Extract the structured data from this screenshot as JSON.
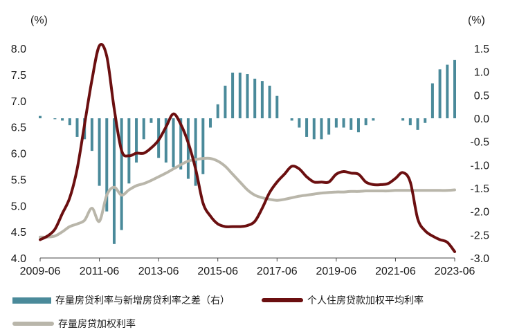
{
  "chart_data": {
    "type": "bar+line",
    "left_unit": "(%)",
    "right_unit": "(%)",
    "x_ticks": [
      "2009-06",
      "2011-06",
      "2013-06",
      "2015-06",
      "2017-06",
      "2019-06",
      "2021-06",
      "2023-06"
    ],
    "x_range": [
      "2009-06",
      "2023-06"
    ],
    "y_left": {
      "min": 4.0,
      "max": 8.0,
      "ticks": [
        "4.0",
        "4.5",
        "5.0",
        "5.5",
        "6.0",
        "6.5",
        "7.0",
        "7.5",
        "8.0"
      ]
    },
    "y_right": {
      "min": -3.0,
      "max": 1.5,
      "ticks": [
        "-3.0",
        "-2.5",
        "-2.0",
        "-1.5",
        "-1.0",
        "-0.5",
        "0.0",
        "0.5",
        "1.0",
        "1.5"
      ]
    },
    "colors": {
      "bar": "#4a8a9a",
      "individual": "#6b0f10",
      "stock": "#b9b6aa"
    },
    "series": [
      {
        "name": "存量房贷利率与新增房贷利率之差（右）",
        "type": "bar",
        "axis": "right",
        "x": [
          "2009-06",
          "2009-09",
          "2009-12",
          "2010-03",
          "2010-06",
          "2010-09",
          "2010-12",
          "2011-03",
          "2011-06",
          "2011-09",
          "2011-12",
          "2012-03",
          "2012-06",
          "2012-09",
          "2012-12",
          "2013-03",
          "2013-06",
          "2013-09",
          "2013-12",
          "2014-03",
          "2014-06",
          "2014-09",
          "2014-12",
          "2015-03",
          "2015-06",
          "2015-09",
          "2015-12",
          "2016-03",
          "2016-06",
          "2016-09",
          "2016-12",
          "2017-03",
          "2017-06",
          "2017-09",
          "2017-12",
          "2018-03",
          "2018-06",
          "2018-09",
          "2018-12",
          "2019-03",
          "2019-06",
          "2019-09",
          "2019-12",
          "2020-03",
          "2020-06",
          "2020-09",
          "2020-12",
          "2021-03",
          "2021-06",
          "2021-09",
          "2021-12",
          "2022-03",
          "2022-06",
          "2022-09",
          "2022-12",
          "2023-03",
          "2023-06"
        ],
        "values": [
          0.05,
          0.0,
          -0.02,
          -0.05,
          -0.15,
          -0.4,
          -0.45,
          -0.7,
          -1.45,
          -2.0,
          -2.7,
          -2.4,
          -1.4,
          -0.95,
          -0.45,
          -0.1,
          -0.85,
          -0.95,
          -1.05,
          -1.1,
          -1.3,
          -1.45,
          -1.2,
          -0.2,
          0.3,
          0.7,
          0.98,
          0.98,
          0.95,
          0.85,
          0.8,
          0.7,
          0.48,
          0.0,
          -0.05,
          -0.2,
          -0.4,
          -0.45,
          -0.45,
          -0.35,
          -0.2,
          -0.2,
          -0.25,
          -0.3,
          -0.15,
          -0.05,
          0.0,
          0.0,
          0.0,
          -0.05,
          -0.15,
          -0.25,
          -0.1,
          0.75,
          1.05,
          1.15,
          1.25
        ]
      },
      {
        "name": "个人住房贷款加权平均利率",
        "type": "line",
        "axis": "left",
        "x": [
          "2009-06",
          "2009-09",
          "2009-12",
          "2010-03",
          "2010-06",
          "2010-09",
          "2010-12",
          "2011-03",
          "2011-06",
          "2011-09",
          "2011-12",
          "2012-03",
          "2012-06",
          "2012-09",
          "2012-12",
          "2013-03",
          "2013-06",
          "2013-09",
          "2013-12",
          "2014-03",
          "2014-06",
          "2014-09",
          "2014-12",
          "2015-03",
          "2015-06",
          "2015-09",
          "2015-12",
          "2016-03",
          "2016-06",
          "2016-09",
          "2016-12",
          "2017-03",
          "2017-06",
          "2017-09",
          "2017-12",
          "2018-03",
          "2018-06",
          "2018-09",
          "2018-12",
          "2019-03",
          "2019-06",
          "2019-09",
          "2019-12",
          "2020-03",
          "2020-06",
          "2020-09",
          "2020-12",
          "2021-03",
          "2021-06",
          "2021-09",
          "2021-12",
          "2022-03",
          "2022-06",
          "2022-09",
          "2022-12",
          "2023-03",
          "2023-06"
        ],
        "values": [
          4.35,
          4.42,
          4.55,
          4.85,
          5.15,
          5.7,
          6.55,
          7.4,
          8.05,
          7.85,
          6.85,
          6.05,
          5.95,
          6.0,
          6.0,
          6.1,
          6.25,
          6.5,
          6.75,
          6.55,
          6.2,
          5.7,
          5.05,
          4.8,
          4.65,
          4.6,
          4.6,
          4.6,
          4.62,
          4.7,
          4.95,
          5.25,
          5.45,
          5.6,
          5.75,
          5.7,
          5.55,
          5.45,
          5.45,
          5.45,
          5.6,
          5.65,
          5.62,
          5.6,
          5.45,
          5.4,
          5.4,
          5.42,
          5.52,
          5.63,
          5.45,
          4.75,
          4.52,
          4.42,
          4.35,
          4.3,
          4.12
        ]
      },
      {
        "name": "存量房贷加权利率",
        "type": "line",
        "axis": "left",
        "x": [
          "2009-06",
          "2009-09",
          "2009-12",
          "2010-03",
          "2010-06",
          "2010-09",
          "2010-12",
          "2011-03",
          "2011-06",
          "2011-09",
          "2011-12",
          "2012-03",
          "2012-06",
          "2012-09",
          "2012-12",
          "2013-03",
          "2013-06",
          "2013-09",
          "2013-12",
          "2014-03",
          "2014-06",
          "2014-09",
          "2014-12",
          "2015-03",
          "2015-06",
          "2015-09",
          "2015-12",
          "2016-03",
          "2016-06",
          "2016-09",
          "2016-12",
          "2017-03",
          "2017-06",
          "2017-09",
          "2017-12",
          "2018-03",
          "2018-06",
          "2018-09",
          "2018-12",
          "2019-03",
          "2019-06",
          "2019-09",
          "2019-12",
          "2020-03",
          "2020-06",
          "2020-09",
          "2020-12",
          "2021-03",
          "2021-06",
          "2021-09",
          "2021-12",
          "2022-03",
          "2022-06",
          "2022-09",
          "2022-12",
          "2023-03",
          "2023-06"
        ],
        "values": [
          4.4,
          4.4,
          4.42,
          4.5,
          4.6,
          4.65,
          4.72,
          4.95,
          4.7,
          5.2,
          5.35,
          5.2,
          5.3,
          5.38,
          5.42,
          5.48,
          5.55,
          5.62,
          5.7,
          5.78,
          5.85,
          5.88,
          5.9,
          5.9,
          5.85,
          5.75,
          5.6,
          5.45,
          5.3,
          5.2,
          5.15,
          5.12,
          5.1,
          5.12,
          5.15,
          5.18,
          5.2,
          5.22,
          5.24,
          5.25,
          5.26,
          5.26,
          5.27,
          5.27,
          5.28,
          5.28,
          5.28,
          5.28,
          5.29,
          5.29,
          5.29,
          5.29,
          5.29,
          5.29,
          5.29,
          5.29,
          5.3
        ]
      }
    ]
  }
}
